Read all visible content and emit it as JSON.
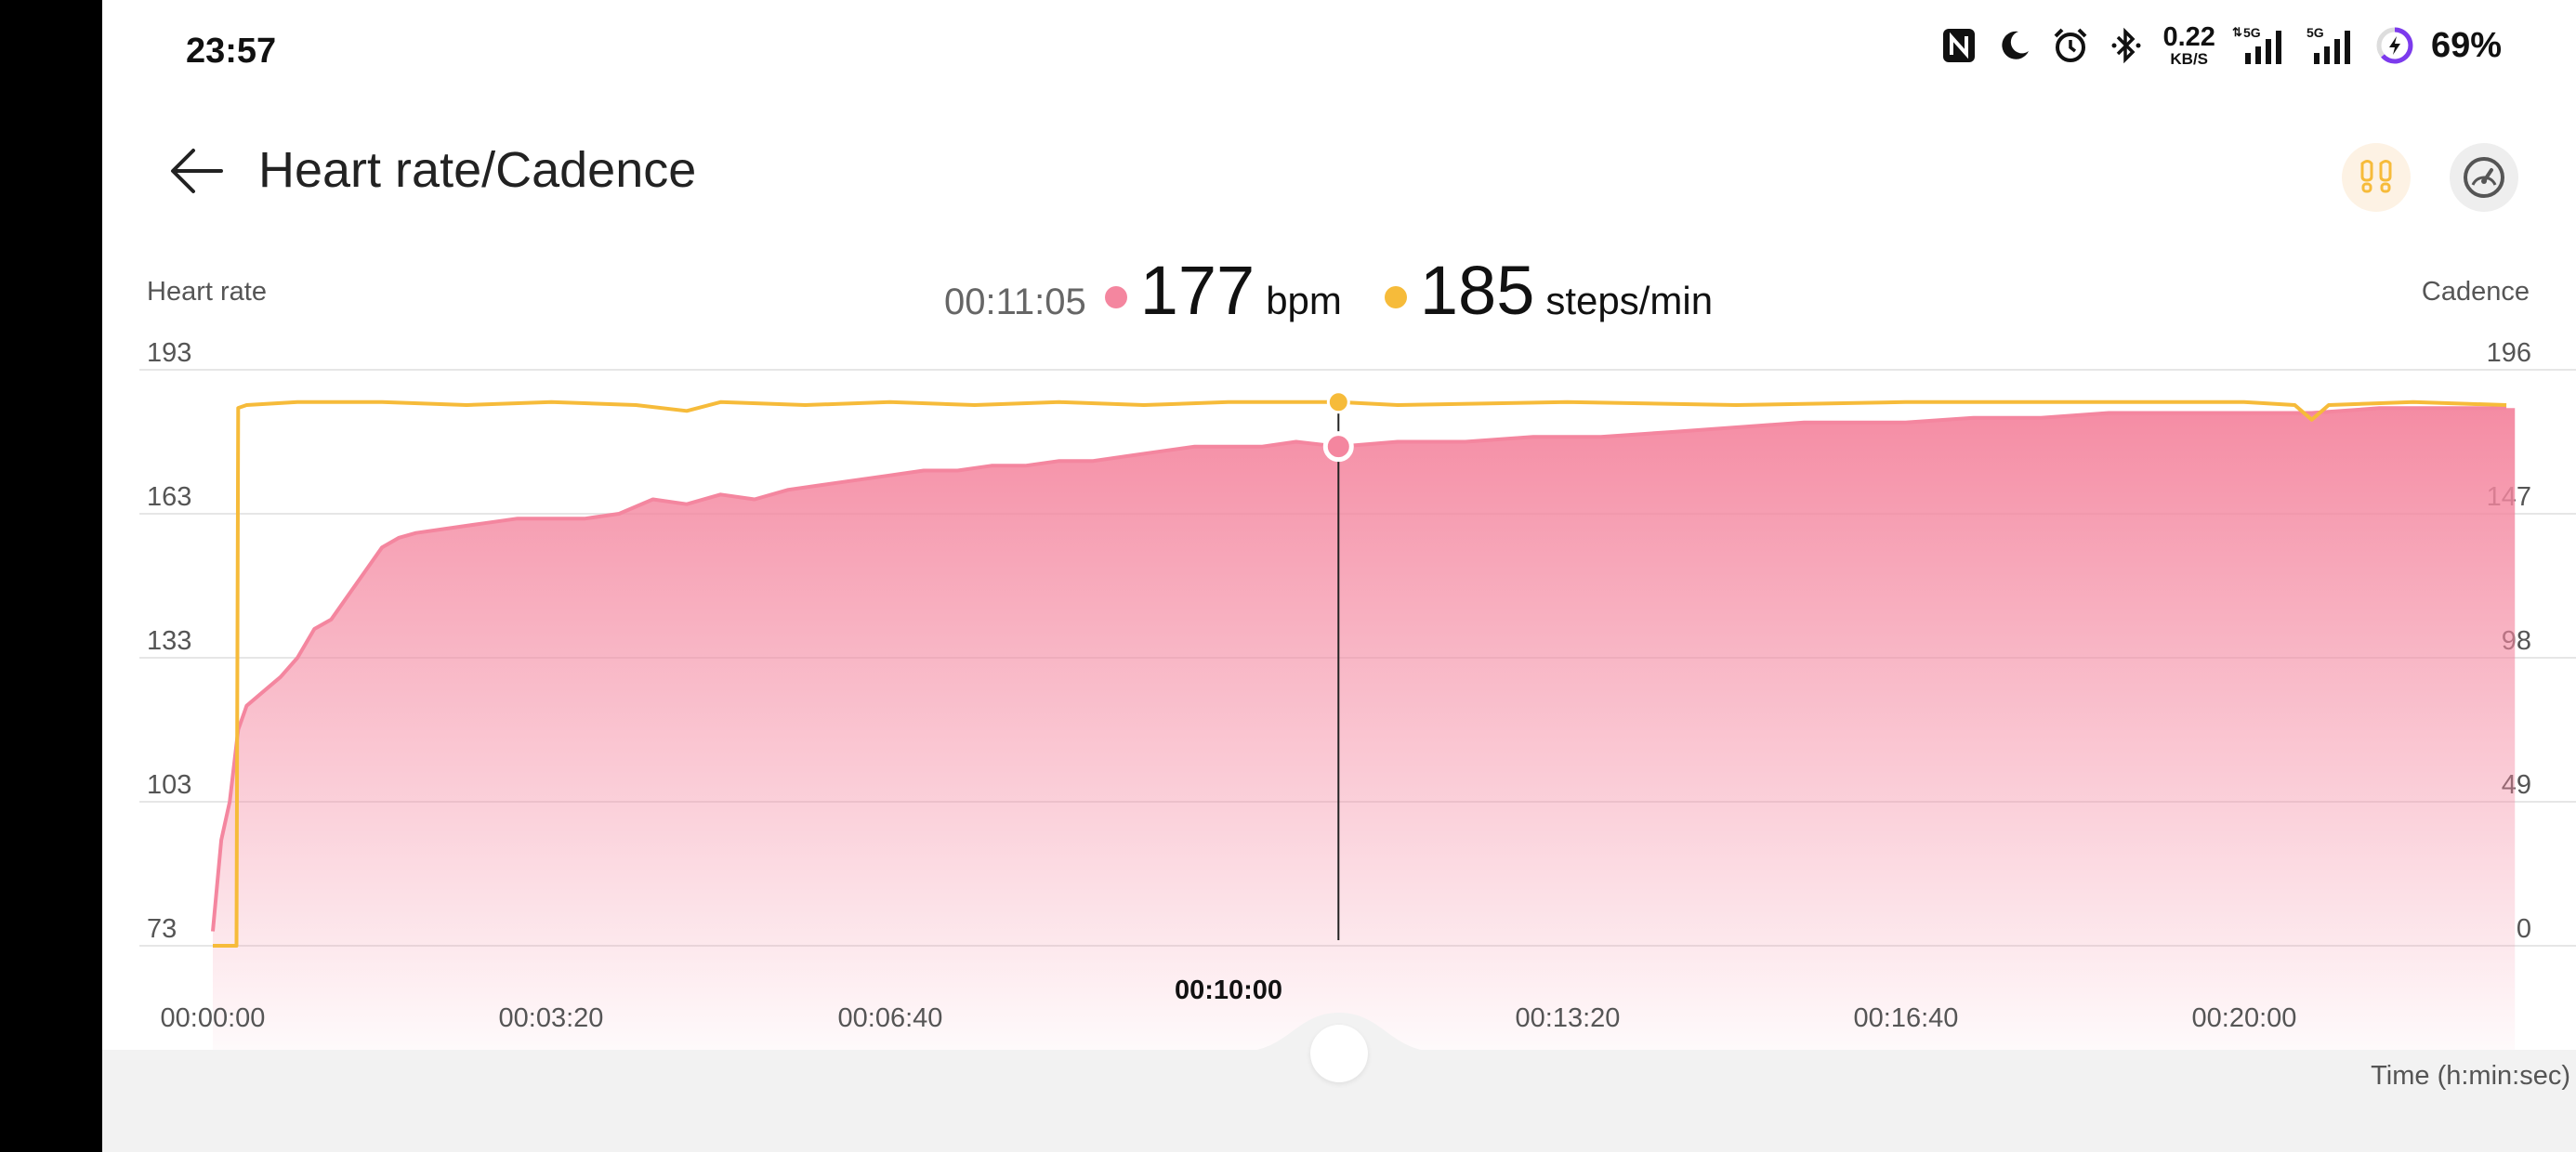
{
  "status_bar": {
    "time": "23:57",
    "net_speed_value": "0.22",
    "net_speed_unit": "KB/S",
    "network_1": "5G",
    "network_2": "5G",
    "battery": "69%",
    "icons": [
      "nfc-icon",
      "moon-icon",
      "alarm-icon",
      "bluetooth-icon",
      "signal-icon",
      "signal-icon",
      "battery-charging-icon"
    ]
  },
  "header": {
    "title": "Heart rate/Cadence",
    "back_icon": "arrow-left-icon",
    "cadence_toggle_icon": "footprints-icon",
    "speed_toggle_icon": "speedometer-icon"
  },
  "readout": {
    "time": "00:11:05",
    "heart_rate": "177",
    "heart_rate_unit": "bpm",
    "cadence": "185",
    "cadence_unit": "steps/min"
  },
  "colors": {
    "heart_rate": "#f4869f",
    "cadence": "#f6bb3a",
    "grid": "#e6e6e6"
  },
  "chart_data": {
    "type": "area",
    "left_axis_title": "Heart rate",
    "right_axis_title": "Cadence",
    "xlabel": "Time (h:min:sec)",
    "x_ticks": [
      "00:00:00",
      "00:03:20",
      "00:06:40",
      "00:10:00",
      "00:13:20",
      "00:16:40",
      "00:20:00"
    ],
    "x_tick_seconds": [
      0,
      200,
      400,
      600,
      800,
      1000,
      1200
    ],
    "highlighted_x_tick": "00:10:00",
    "x_range_seconds": [
      0,
      1360
    ],
    "left_ticks": [
      "193",
      "163",
      "133",
      "103",
      "73"
    ],
    "right_ticks": [
      "196",
      "147",
      "98",
      "49",
      "0"
    ],
    "left_range": [
      73,
      193
    ],
    "right_range": [
      0,
      196
    ],
    "selected_time_seconds": 665,
    "series": [
      {
        "name": "Heart rate",
        "axis": "left",
        "unit": "bpm",
        "x": [
          0,
          5,
          10,
          15,
          20,
          30,
          40,
          50,
          60,
          70,
          80,
          90,
          100,
          110,
          120,
          140,
          160,
          180,
          200,
          220,
          240,
          260,
          280,
          300,
          320,
          340,
          360,
          380,
          400,
          420,
          440,
          460,
          480,
          500,
          520,
          540,
          560,
          580,
          600,
          620,
          640,
          665,
          700,
          740,
          780,
          820,
          860,
          900,
          940,
          980,
          1000,
          1040,
          1080,
          1120,
          1160,
          1200,
          1240,
          1280,
          1320,
          1355
        ],
        "values": [
          76,
          95,
          103,
          118,
          123,
          126,
          129,
          133,
          139,
          141,
          146,
          151,
          156,
          158,
          159,
          160,
          161,
          162,
          162,
          162,
          163,
          166,
          165,
          167,
          166,
          168,
          169,
          170,
          171,
          172,
          172,
          173,
          173,
          174,
          174,
          175,
          176,
          177,
          177,
          177,
          178,
          177,
          178,
          178,
          179,
          179,
          180,
          181,
          182,
          182,
          182,
          183,
          183,
          184,
          184,
          184,
          184,
          185,
          185,
          185
        ]
      },
      {
        "name": "Cadence",
        "axis": "right",
        "unit": "steps/min",
        "x": [
          0,
          14,
          15,
          20,
          50,
          100,
          150,
          200,
          250,
          280,
          300,
          350,
          400,
          450,
          500,
          550,
          600,
          665,
          700,
          800,
          900,
          1000,
          1100,
          1200,
          1230,
          1240,
          1250,
          1300,
          1355
        ],
        "values": [
          0,
          0,
          183,
          184,
          185,
          185,
          184,
          185,
          184,
          182,
          185,
          184,
          185,
          184,
          185,
          184,
          185,
          185,
          184,
          185,
          184,
          185,
          185,
          185,
          184,
          179,
          184,
          185,
          184
        ]
      }
    ]
  }
}
